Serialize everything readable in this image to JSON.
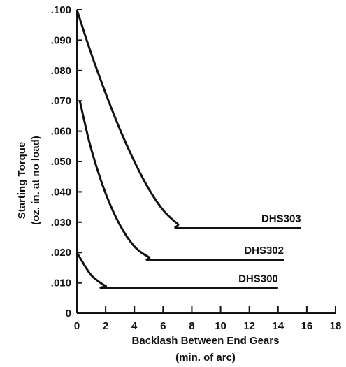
{
  "chart_data": {
    "type": "line",
    "xlabel_line1": "Backlash Between End Gears",
    "xlabel_line2": "(min. of arc)",
    "ylabel_line1": "Starting Torque",
    "ylabel_line2": "(oz. in. at no load)",
    "xlim": [
      0,
      18
    ],
    "ylim": [
      0,
      0.1
    ],
    "x_ticks": [
      0,
      2,
      4,
      6,
      8,
      10,
      12,
      14,
      16,
      18
    ],
    "x_tick_labels": [
      "0",
      "2",
      "4",
      "6",
      "8",
      "10",
      "12",
      "14",
      "16",
      "18"
    ],
    "y_ticks": [
      0,
      0.01,
      0.02,
      0.03,
      0.04,
      0.05,
      0.06,
      0.07,
      0.08,
      0.09,
      0.1
    ],
    "y_tick_labels": [
      "0",
      ".010",
      ".020",
      ".030",
      ".040",
      ".050",
      ".060",
      ".070",
      ".080",
      ".090",
      ".100"
    ],
    "grid": false,
    "series": [
      {
        "name": "DHS303",
        "points": [
          {
            "x": 0,
            "y": 0.1
          },
          {
            "x": 1,
            "y": 0.0855
          },
          {
            "x": 2,
            "y": 0.0725
          },
          {
            "x": 3,
            "y": 0.0605
          },
          {
            "x": 4,
            "y": 0.05
          },
          {
            "x": 5,
            "y": 0.041
          },
          {
            "x": 6,
            "y": 0.034
          },
          {
            "x": 7,
            "y": 0.0295
          },
          {
            "x": 7.6,
            "y": 0.028
          },
          {
            "x": 15.6,
            "y": 0.028
          }
        ]
      },
      {
        "name": "DHS302",
        "points": [
          {
            "x": 0.2,
            "y": 0.07
          },
          {
            "x": 1,
            "y": 0.054
          },
          {
            "x": 2,
            "y": 0.0395
          },
          {
            "x": 3,
            "y": 0.029
          },
          {
            "x": 4,
            "y": 0.022
          },
          {
            "x": 5,
            "y": 0.0185
          },
          {
            "x": 5.7,
            "y": 0.0175
          },
          {
            "x": 14.4,
            "y": 0.0175
          }
        ]
      },
      {
        "name": "DHS300",
        "points": [
          {
            "x": 0,
            "y": 0.02
          },
          {
            "x": 0.5,
            "y": 0.016
          },
          {
            "x": 1,
            "y": 0.0125
          },
          {
            "x": 1.5,
            "y": 0.0105
          },
          {
            "x": 2,
            "y": 0.009
          },
          {
            "x": 2.7,
            "y": 0.0082
          },
          {
            "x": 14,
            "y": 0.0082
          }
        ]
      }
    ]
  }
}
